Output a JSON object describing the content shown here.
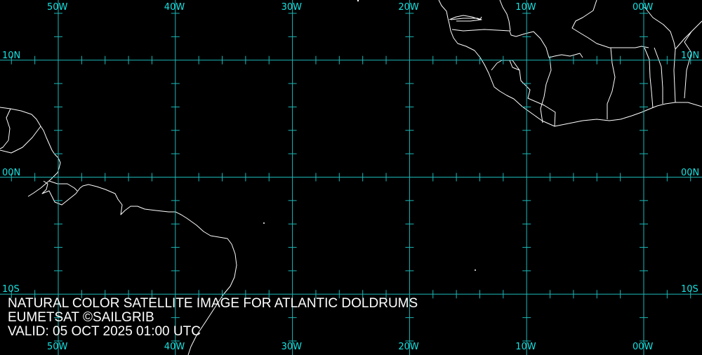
{
  "map": {
    "projection": "equirectangular",
    "lon_range": [
      -55,
      5
    ],
    "lat_range": [
      -15,
      15
    ],
    "grid_color": "#1cb8b8",
    "label_color": "#18e0e0",
    "coast_color": "#ffffff",
    "background": "#000000",
    "meridians": [
      {
        "lon": -50,
        "label": "50W"
      },
      {
        "lon": -40,
        "label": "40W"
      },
      {
        "lon": -30,
        "label": "30W"
      },
      {
        "lon": -20,
        "label": "20W"
      },
      {
        "lon": -10,
        "label": "10W"
      },
      {
        "lon": 0,
        "label": "00W"
      }
    ],
    "parallels": [
      {
        "lat": 10,
        "label": "10N"
      },
      {
        "lat": 0,
        "label": "00N"
      },
      {
        "lat": -10,
        "label": "10S"
      }
    ],
    "tick_interval_deg": 2
  },
  "caption": {
    "line1": "NATURAL COLOR SATELLITE IMAGE FOR ATLANTIC DOLDRUMS",
    "line2": "EUMETSAT ©SAILGRIB",
    "line3": "VALID:  05 OCT 2025 01:00 UTC"
  }
}
